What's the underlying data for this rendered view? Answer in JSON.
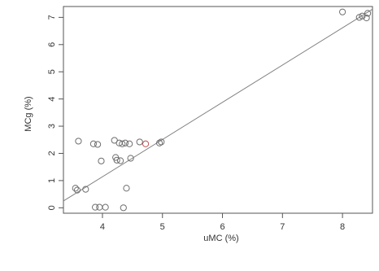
{
  "chart_data": {
    "type": "scatter",
    "title": "",
    "xlabel": "uMC (%)",
    "ylabel": "MCg (%)",
    "xlim": [
      3.35,
      8.5
    ],
    "ylim": [
      -0.2,
      7.4
    ],
    "x_ticks": [
      4,
      5,
      6,
      7,
      8
    ],
    "y_ticks": [
      0,
      1,
      2,
      3,
      4,
      5,
      6,
      7
    ],
    "x_tick_labels": [
      "4",
      "5",
      "6",
      "7",
      "8"
    ],
    "y_tick_labels": [
      "0",
      "1",
      "2",
      "3",
      "4",
      "5",
      "6",
      "7"
    ],
    "grid": false,
    "legend": "none",
    "marker": "open-circle",
    "point_color": "#6e6e6e",
    "highlight_color": "#c0504d",
    "line_color": "#808080",
    "regression_line": {
      "x": [
        3.35,
        8.5
      ],
      "y": [
        0.25,
        7.3
      ]
    },
    "series": [
      {
        "points": [
          {
            "x": 3.55,
            "y": 0.72
          },
          {
            "x": 3.58,
            "y": 0.65
          },
          {
            "x": 3.6,
            "y": 2.45
          },
          {
            "x": 3.72,
            "y": 0.68
          },
          {
            "x": 3.85,
            "y": 2.35
          },
          {
            "x": 3.88,
            "y": 0.02
          },
          {
            "x": 3.92,
            "y": 2.33
          },
          {
            "x": 3.95,
            "y": 0.02
          },
          {
            "x": 3.98,
            "y": 1.72
          },
          {
            "x": 4.05,
            "y": 0.02
          },
          {
            "x": 4.2,
            "y": 2.48
          },
          {
            "x": 4.22,
            "y": 1.85
          },
          {
            "x": 4.24,
            "y": 1.75
          },
          {
            "x": 4.28,
            "y": 2.38
          },
          {
            "x": 4.3,
            "y": 1.73
          },
          {
            "x": 4.33,
            "y": 2.35
          },
          {
            "x": 4.35,
            "y": 0.0
          },
          {
            "x": 4.38,
            "y": 2.38
          },
          {
            "x": 4.4,
            "y": 0.72
          },
          {
            "x": 4.45,
            "y": 2.35
          },
          {
            "x": 4.47,
            "y": 1.82
          },
          {
            "x": 4.62,
            "y": 2.42
          },
          {
            "x": 4.72,
            "y": 2.35,
            "highlight": true
          },
          {
            "x": 4.95,
            "y": 2.38
          },
          {
            "x": 4.98,
            "y": 2.42
          },
          {
            "x": 8.0,
            "y": 7.2
          },
          {
            "x": 8.28,
            "y": 7.0
          },
          {
            "x": 8.33,
            "y": 7.05
          },
          {
            "x": 8.4,
            "y": 6.98
          },
          {
            "x": 8.42,
            "y": 7.15
          }
        ]
      }
    ]
  }
}
